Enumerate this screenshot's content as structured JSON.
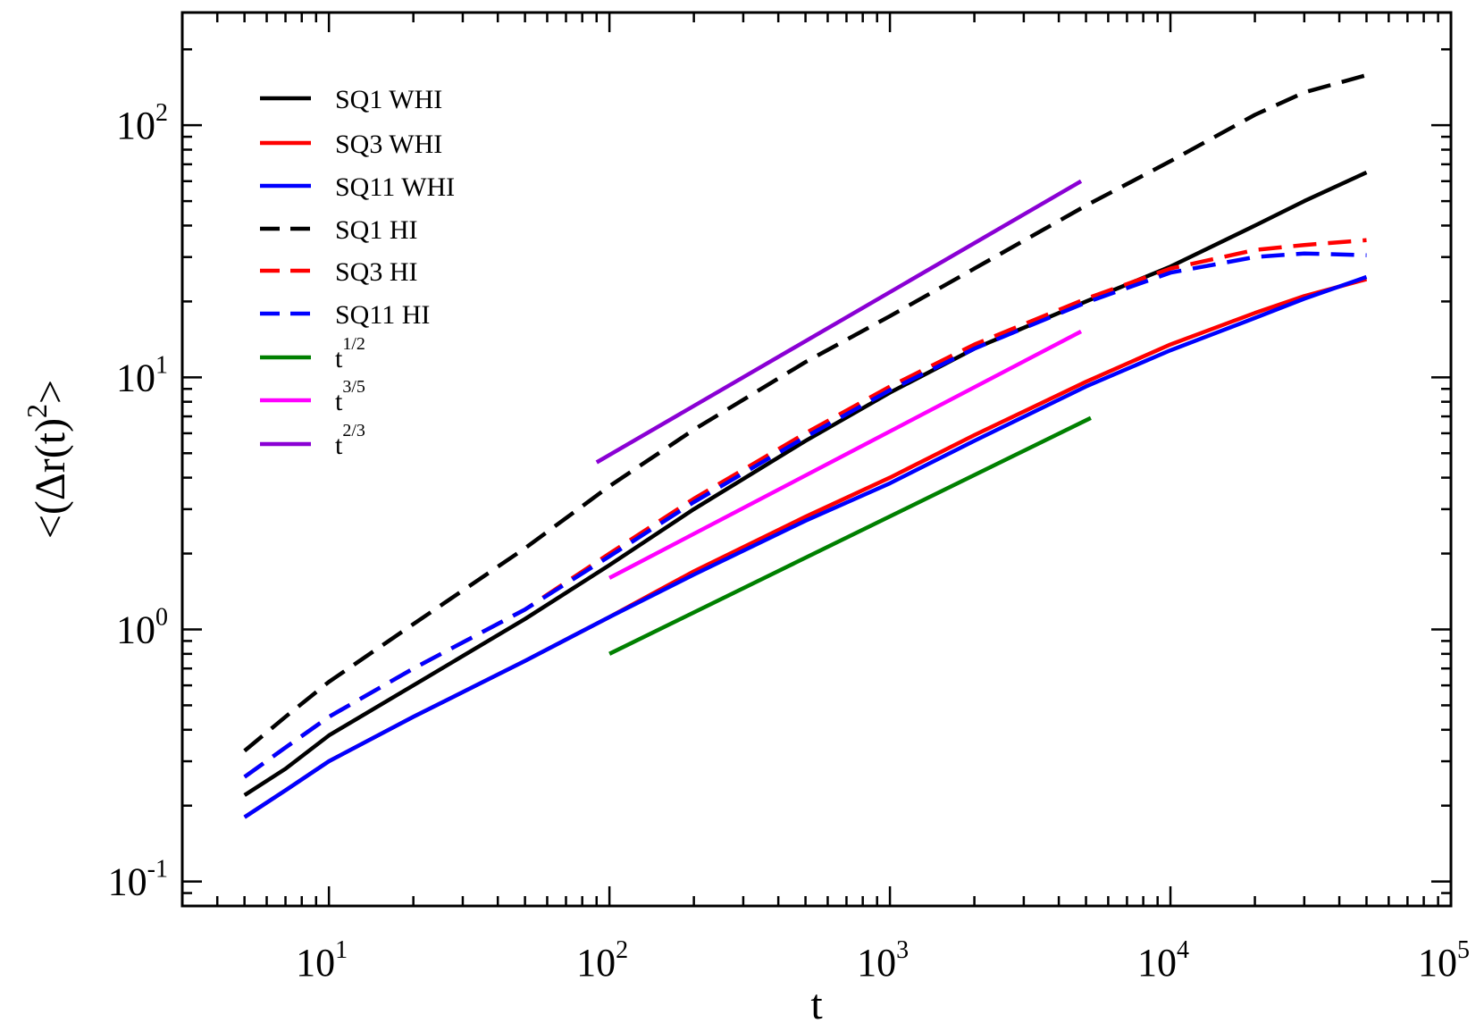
{
  "chart_data": {
    "type": "line",
    "title": "",
    "xlabel": "t",
    "ylabel": "<(Δr(t)²>",
    "ylabel_parts": {
      "open": "<(Δr(t)",
      "sup": "2",
      "close": ">"
    },
    "xscale": "log",
    "yscale": "log",
    "xlim": [
      3,
      100000
    ],
    "ylim": [
      0.08,
      280
    ],
    "grid": false,
    "legend_position": "top-left",
    "xticks": [
      {
        "value": 10,
        "base": "10",
        "exp": "1"
      },
      {
        "value": 100,
        "base": "10",
        "exp": "2"
      },
      {
        "value": 1000,
        "base": "10",
        "exp": "3"
      },
      {
        "value": 10000,
        "base": "10",
        "exp": "4"
      },
      {
        "value": 100000,
        "base": "10",
        "exp": "5"
      }
    ],
    "yticks": [
      {
        "value": 0.1,
        "base": "10",
        "exp": "-1"
      },
      {
        "value": 1,
        "base": "10",
        "exp": "0"
      },
      {
        "value": 10,
        "base": "10",
        "exp": "1"
      },
      {
        "value": 100,
        "base": "10",
        "exp": "2"
      }
    ],
    "series": [
      {
        "name": "SQ1 WHI",
        "label": "SQ1 WHI",
        "color": "#000000",
        "dash": "solid",
        "x": [
          5,
          7,
          10,
          20,
          50,
          100,
          200,
          500,
          1000,
          2000,
          5000,
          10000,
          20000,
          30000,
          50000
        ],
        "y": [
          0.22,
          0.28,
          0.38,
          0.6,
          1.1,
          1.8,
          3.0,
          5.6,
          8.7,
          13.0,
          20.0,
          27.5,
          40.0,
          50.0,
          65.0
        ]
      },
      {
        "name": "SQ3 WHI",
        "label": "SQ3 WHI",
        "color": "#ff0000",
        "dash": "solid",
        "x": [
          5,
          7,
          10,
          20,
          50,
          100,
          200,
          500,
          1000,
          2000,
          5000,
          10000,
          20000,
          30000,
          50000
        ],
        "y": [
          0.18,
          0.23,
          0.3,
          0.45,
          0.75,
          1.12,
          1.7,
          2.8,
          4.0,
          5.9,
          9.6,
          13.5,
          18.0,
          21.0,
          24.5
        ]
      },
      {
        "name": "SQ11 WHI",
        "label": "SQ11 WHI",
        "color": "#0000ff",
        "dash": "solid",
        "x": [
          5,
          7,
          10,
          20,
          50,
          100,
          200,
          500,
          1000,
          2000,
          5000,
          10000,
          20000,
          30000,
          50000
        ],
        "y": [
          0.18,
          0.23,
          0.3,
          0.45,
          0.75,
          1.12,
          1.65,
          2.7,
          3.8,
          5.6,
          9.2,
          12.8,
          17.2,
          20.5,
          25.0
        ]
      },
      {
        "name": "SQ1 HI",
        "label": "SQ1 HI",
        "color": "#000000",
        "dash": "dashed",
        "x": [
          5,
          7,
          10,
          20,
          50,
          100,
          200,
          500,
          1000,
          2000,
          5000,
          10000,
          20000,
          30000,
          50000
        ],
        "y": [
          0.33,
          0.45,
          0.62,
          1.05,
          2.1,
          3.7,
          6.2,
          11.5,
          17.5,
          27.0,
          48.0,
          72.0,
          110.0,
          135.0,
          158.0
        ]
      },
      {
        "name": "SQ3 HI",
        "label": "SQ3 HI",
        "color": "#ff0000",
        "dash": "dashed",
        "x": [
          5,
          7,
          10,
          20,
          50,
          100,
          200,
          500,
          1000,
          2000,
          5000,
          10000,
          20000,
          30000,
          50000
        ],
        "y": [
          0.26,
          0.34,
          0.45,
          0.7,
          1.2,
          2.0,
          3.3,
          6.0,
          9.2,
          13.5,
          20.5,
          27.0,
          32.0,
          33.5,
          35.0
        ]
      },
      {
        "name": "SQ11 HI",
        "label": "SQ11 HI",
        "color": "#0000ff",
        "dash": "dashed",
        "x": [
          5,
          7,
          10,
          20,
          50,
          100,
          200,
          500,
          1000,
          2000,
          5000,
          10000,
          20000,
          30000,
          50000
        ],
        "y": [
          0.26,
          0.34,
          0.45,
          0.7,
          1.2,
          1.95,
          3.2,
          5.8,
          8.9,
          13.0,
          19.8,
          26.0,
          30.0,
          31.0,
          30.5
        ]
      },
      {
        "name": "t^{1/2}",
        "label": "t",
        "label_sup": "1/2",
        "color": "#008000",
        "dash": "solid",
        "x": [
          100,
          5200
        ],
        "y": [
          0.8,
          6.9
        ]
      },
      {
        "name": "t^{3/5}",
        "label": "t",
        "label_sup": "3/5",
        "color": "#ff00ff",
        "dash": "solid",
        "x": [
          100,
          4800
        ],
        "y": [
          1.6,
          15.2
        ]
      },
      {
        "name": "t^{2/3}",
        "label": "t",
        "label_sup": "2/3",
        "color": "#8a00d4",
        "dash": "solid",
        "x": [
          90,
          4800
        ],
        "y": [
          4.6,
          60.0
        ]
      }
    ]
  }
}
